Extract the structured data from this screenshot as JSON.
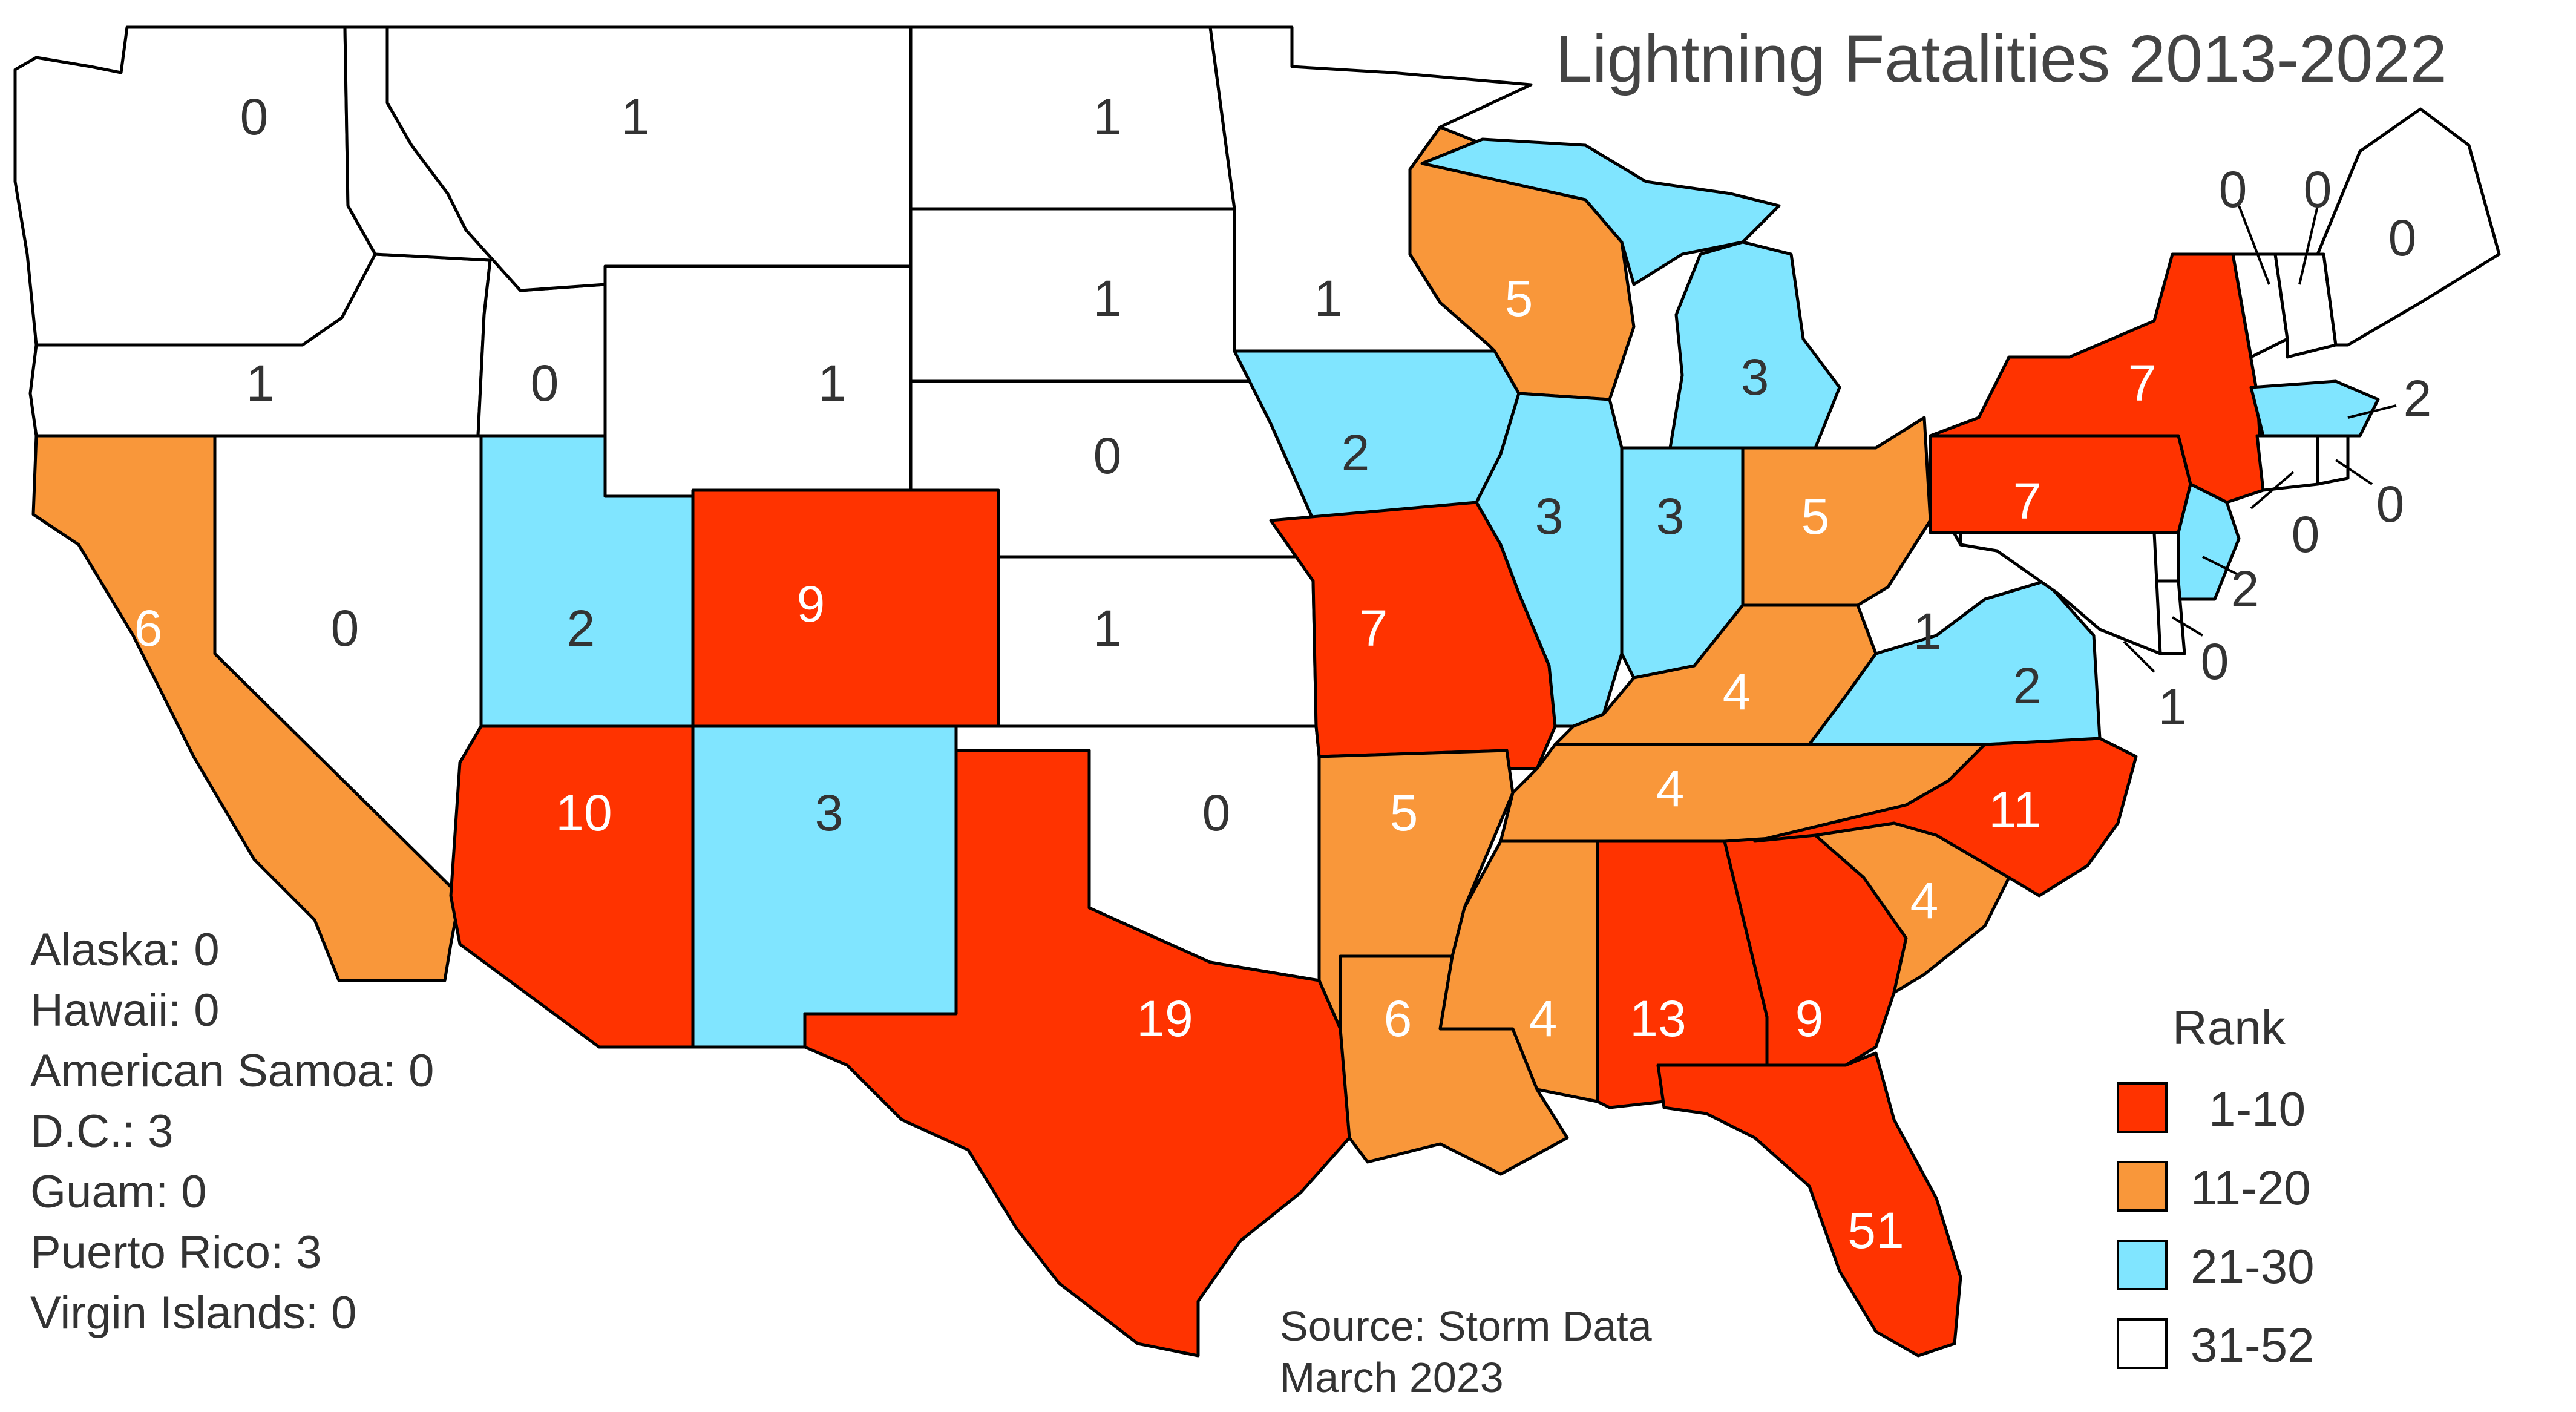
{
  "title": "Lightning Fatalities 2013-2022",
  "colors": {
    "rank_1_10": "#FF3300",
    "rank_11_20": "#F9973A",
    "rank_21_30": "#80E5FF",
    "rank_31_52": "#FFFFFF"
  },
  "states": [
    {
      "name": "WA",
      "label": "0",
      "rank_group": "31-52"
    },
    {
      "name": "OR",
      "label": "1",
      "rank_group": "31-52"
    },
    {
      "name": "CA",
      "label": "6",
      "rank_group": "11-20"
    },
    {
      "name": "NV",
      "label": "0",
      "rank_group": "31-52"
    },
    {
      "name": "ID",
      "label": "0",
      "rank_group": "31-52"
    },
    {
      "name": "MT",
      "label": "1",
      "rank_group": "31-52"
    },
    {
      "name": "WY",
      "label": "1",
      "rank_group": "31-52"
    },
    {
      "name": "UT",
      "label": "2",
      "rank_group": "21-30"
    },
    {
      "name": "CO",
      "label": "9",
      "rank_group": "1-10"
    },
    {
      "name": "AZ",
      "label": "10",
      "rank_group": "1-10"
    },
    {
      "name": "NM",
      "label": "3",
      "rank_group": "21-30"
    },
    {
      "name": "ND",
      "label": "1",
      "rank_group": "31-52"
    },
    {
      "name": "SD",
      "label": "1",
      "rank_group": "31-52"
    },
    {
      "name": "NE",
      "label": "0",
      "rank_group": "31-52"
    },
    {
      "name": "KS",
      "label": "1",
      "rank_group": "31-52"
    },
    {
      "name": "OK",
      "label": "0",
      "rank_group": "31-52"
    },
    {
      "name": "TX",
      "label": "19",
      "rank_group": "1-10"
    },
    {
      "name": "MN",
      "label": "1",
      "rank_group": "31-52"
    },
    {
      "name": "IA",
      "label": "2",
      "rank_group": "21-30"
    },
    {
      "name": "MO",
      "label": "7",
      "rank_group": "1-10"
    },
    {
      "name": "AR",
      "label": "5",
      "rank_group": "11-20"
    },
    {
      "name": "LA",
      "label": "6",
      "rank_group": "11-20"
    },
    {
      "name": "WI",
      "label": "5",
      "rank_group": "11-20"
    },
    {
      "name": "IL",
      "label": "3",
      "rank_group": "21-30"
    },
    {
      "name": "MI",
      "label": "3",
      "rank_group": "21-30"
    },
    {
      "name": "IN",
      "label": "3",
      "rank_group": "21-30"
    },
    {
      "name": "OH",
      "label": "5",
      "rank_group": "11-20"
    },
    {
      "name": "KY",
      "label": "4",
      "rank_group": "11-20"
    },
    {
      "name": "TN",
      "label": "4",
      "rank_group": "11-20"
    },
    {
      "name": "MS",
      "label": "4",
      "rank_group": "11-20"
    },
    {
      "name": "AL",
      "label": "13",
      "rank_group": "1-10"
    },
    {
      "name": "GA",
      "label": "9",
      "rank_group": "1-10"
    },
    {
      "name": "FL",
      "label": "51",
      "rank_group": "1-10"
    },
    {
      "name": "SC",
      "label": "4",
      "rank_group": "11-20"
    },
    {
      "name": "NC",
      "label": "11",
      "rank_group": "1-10"
    },
    {
      "name": "VA",
      "label": "2",
      "rank_group": "21-30"
    },
    {
      "name": "WV",
      "label": "1",
      "rank_group": "31-52"
    },
    {
      "name": "PA",
      "label": "7",
      "rank_group": "1-10"
    },
    {
      "name": "NY",
      "label": "7",
      "rank_group": "1-10"
    },
    {
      "name": "VT",
      "label": "0",
      "rank_group": "31-52"
    },
    {
      "name": "NH",
      "label": "0",
      "rank_group": "31-52"
    },
    {
      "name": "ME",
      "label": "0",
      "rank_group": "31-52"
    },
    {
      "name": "MA",
      "label": "2",
      "rank_group": "21-30"
    },
    {
      "name": "RI",
      "label": "0",
      "rank_group": "31-52"
    },
    {
      "name": "CT",
      "label": "0",
      "rank_group": "31-52"
    },
    {
      "name": "NJ",
      "label": "2",
      "rank_group": "21-30"
    },
    {
      "name": "DE",
      "label": "0",
      "rank_group": "31-52"
    },
    {
      "name": "MD",
      "label": "1",
      "rank_group": "31-52"
    }
  ],
  "territories": [
    "Alaska: 0",
    "Hawaii: 0",
    "American Samoa: 0",
    "D.C.: 3",
    "Guam: 0",
    "Puerto Rico: 3",
    "Virgin Islands: 0"
  ],
  "source": [
    "Source: Storm Data",
    "March 2023"
  ],
  "legend": {
    "title": "Rank",
    "items": [
      {
        "label": "1-10",
        "color": "#FF3300"
      },
      {
        "label": "11-20",
        "color": "#F9973A"
      },
      {
        "label": "21-30",
        "color": "#80E5FF"
      },
      {
        "label": "31-52",
        "color": "#FFFFFF"
      }
    ]
  }
}
